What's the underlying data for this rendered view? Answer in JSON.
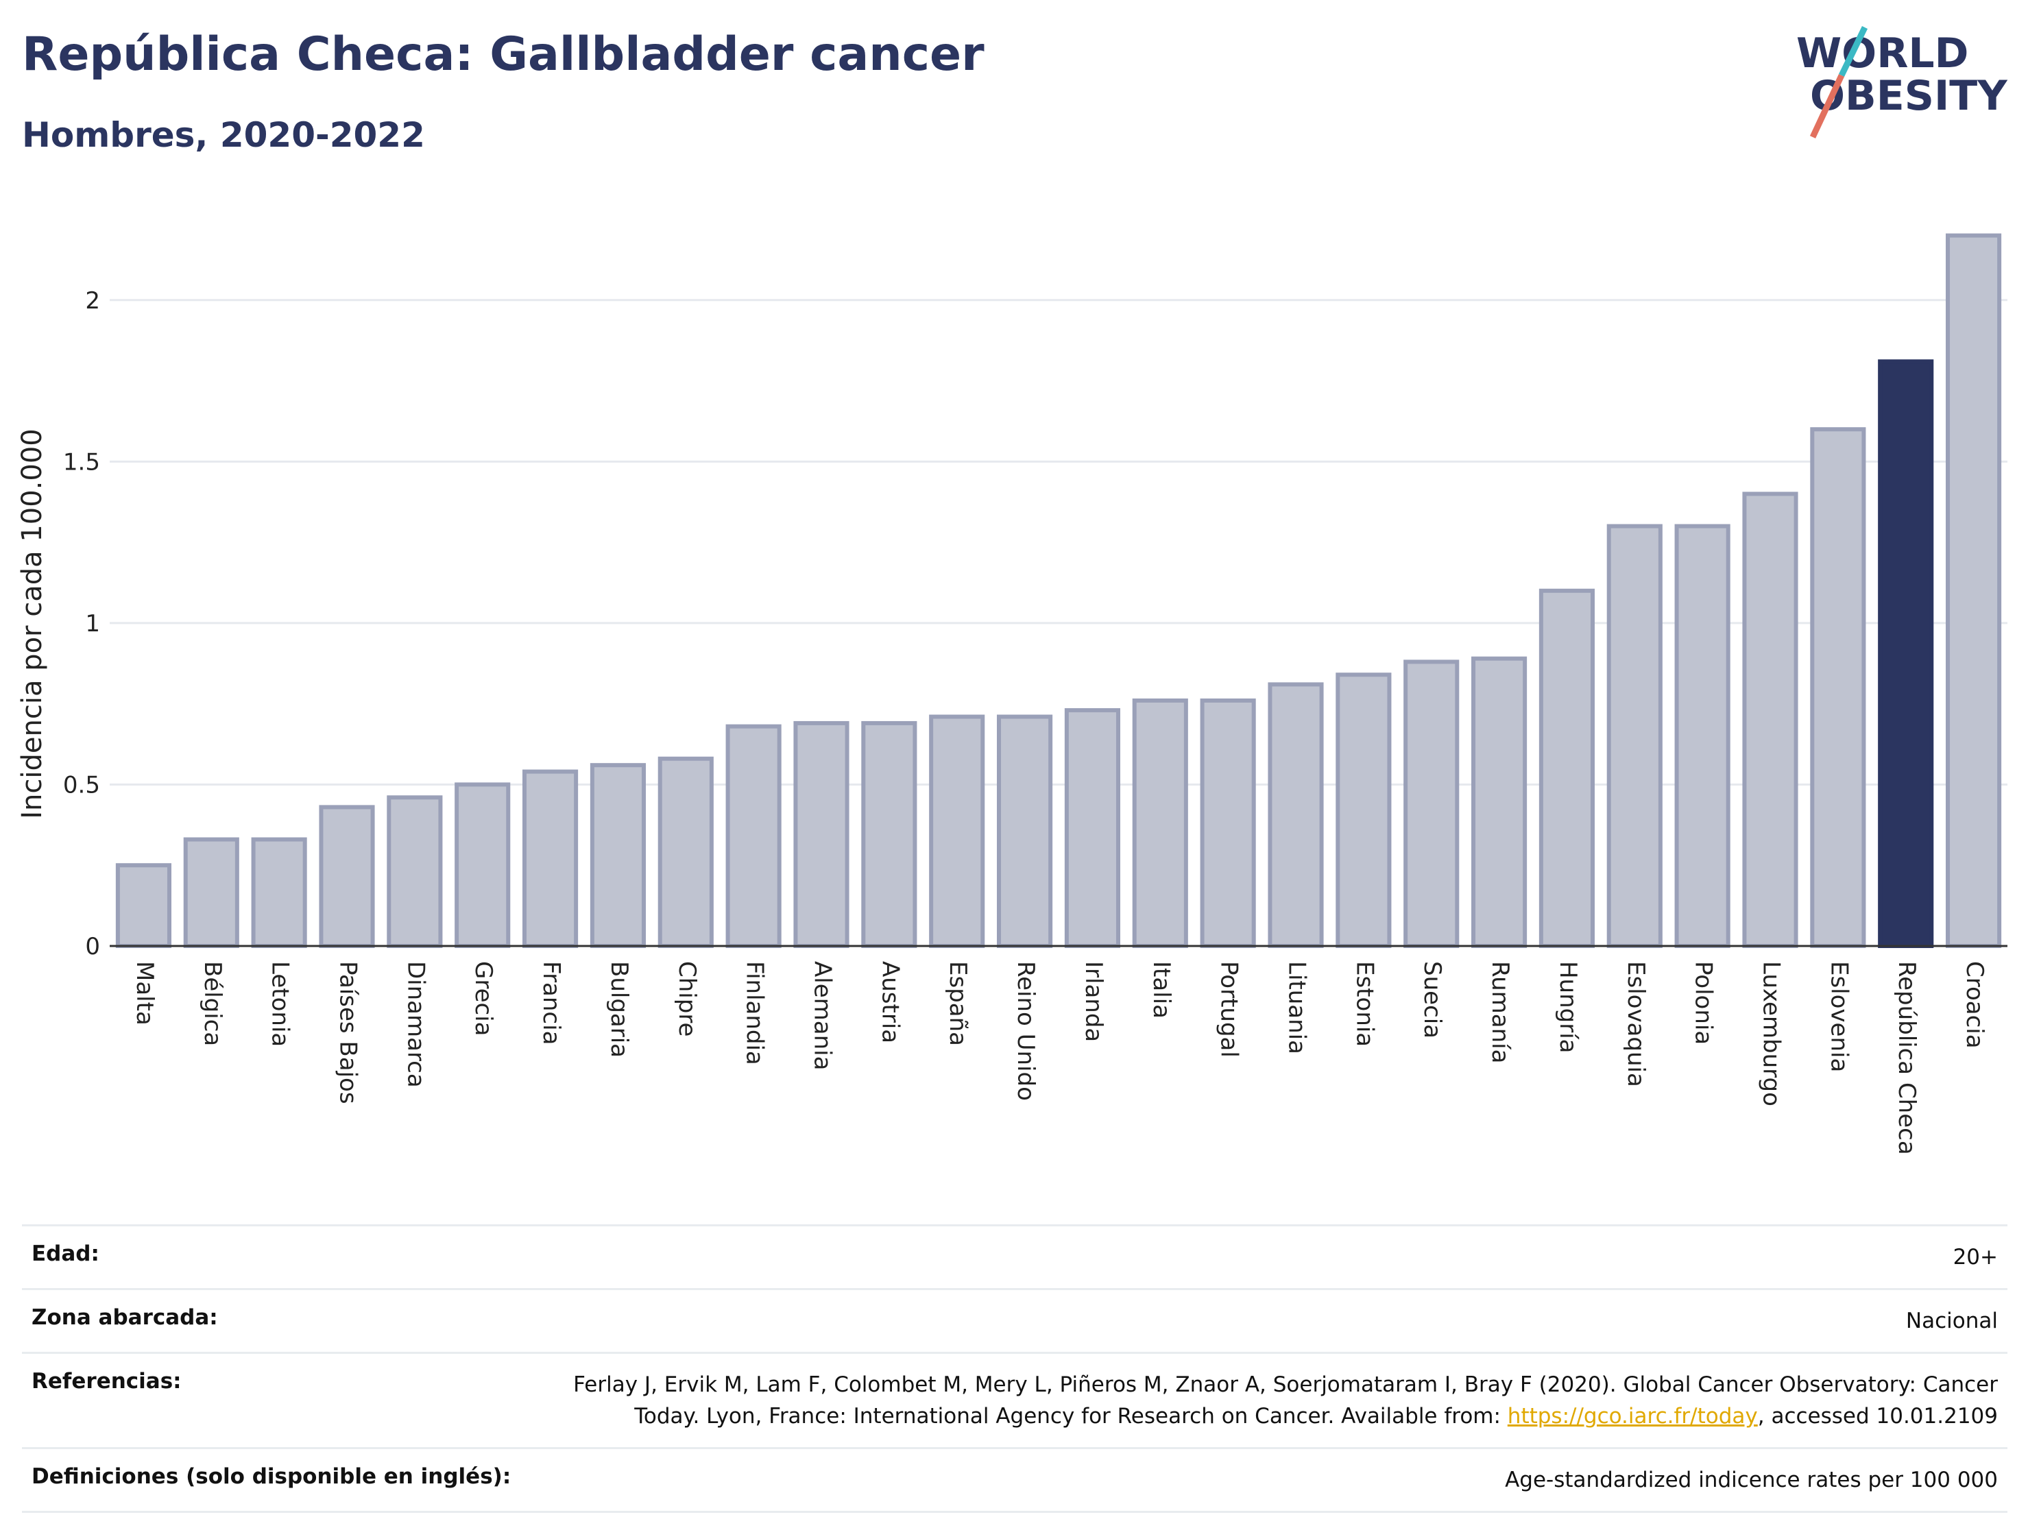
{
  "header": {
    "title": "República Checa: Gallbladder cancer",
    "subtitle": "Hombres, 2020-2022"
  },
  "logo": {
    "line1": "WORLD",
    "line2": "OBESITY"
  },
  "colors": {
    "bar": "#bfc3d0",
    "bar_border": "#9aa0b8",
    "highlight": "#2b3560",
    "grid": "#e6e9ee",
    "logo_text": "#2b3560",
    "logo_teal": "#3bb9c4",
    "logo_coral": "#e2705e"
  },
  "chart_data": {
    "type": "bar",
    "ylabel": "Incidencia por cada 100.000",
    "ylim": [
      0,
      2.25
    ],
    "yticks": [
      0,
      0.5,
      1,
      1.5,
      2
    ],
    "ytick_labels": [
      "0",
      "0.5",
      "1",
      "1.5",
      "2"
    ],
    "grid": true,
    "highlight": "República Checa",
    "categories": [
      "Malta",
      "Bélgica",
      "Letonia",
      "Países Bajos",
      "Dinamarca",
      "Grecia",
      "Francia",
      "Bulgaria",
      "Chipre",
      "Finlandia",
      "Alemania",
      "Austria",
      "España",
      "Reino Unido",
      "Irlanda",
      "Italia",
      "Portugal",
      "Lituania",
      "Estonia",
      "Suecia",
      "Rumanía",
      "Hungría",
      "Eslovaquia",
      "Polonia",
      "Luxemburgo",
      "Eslovenia",
      "República Checa",
      "Croacia"
    ],
    "values": [
      0.25,
      0.33,
      0.33,
      0.43,
      0.46,
      0.5,
      0.54,
      0.56,
      0.58,
      0.68,
      0.69,
      0.69,
      0.71,
      0.71,
      0.73,
      0.76,
      0.76,
      0.81,
      0.84,
      0.88,
      0.89,
      1.1,
      1.3,
      1.3,
      1.4,
      1.6,
      1.81,
      2.2
    ]
  },
  "meta": {
    "rows": [
      {
        "label": "Edad:",
        "value": "20+"
      },
      {
        "label": "Zona abarcada:",
        "value": "Nacional"
      },
      {
        "label": "Referencias:",
        "value_line1": "Ferlay J, Ervik M, Lam F, Colombet M, Mery L, Piñeros M, Znaor A, Soerjomataram I, Bray F (2020). Global Cancer Observatory: Cancer",
        "value_pre": "Today. Lyon, France: International Agency for Research on Cancer. Available from: ",
        "link": "https://gco.iarc.fr/today",
        "value_post": ", accessed 10.01.2109"
      },
      {
        "label": "Definiciones (solo disponible en inglés):",
        "value": "Age-standardized indicence rates per 100 000"
      }
    ]
  }
}
